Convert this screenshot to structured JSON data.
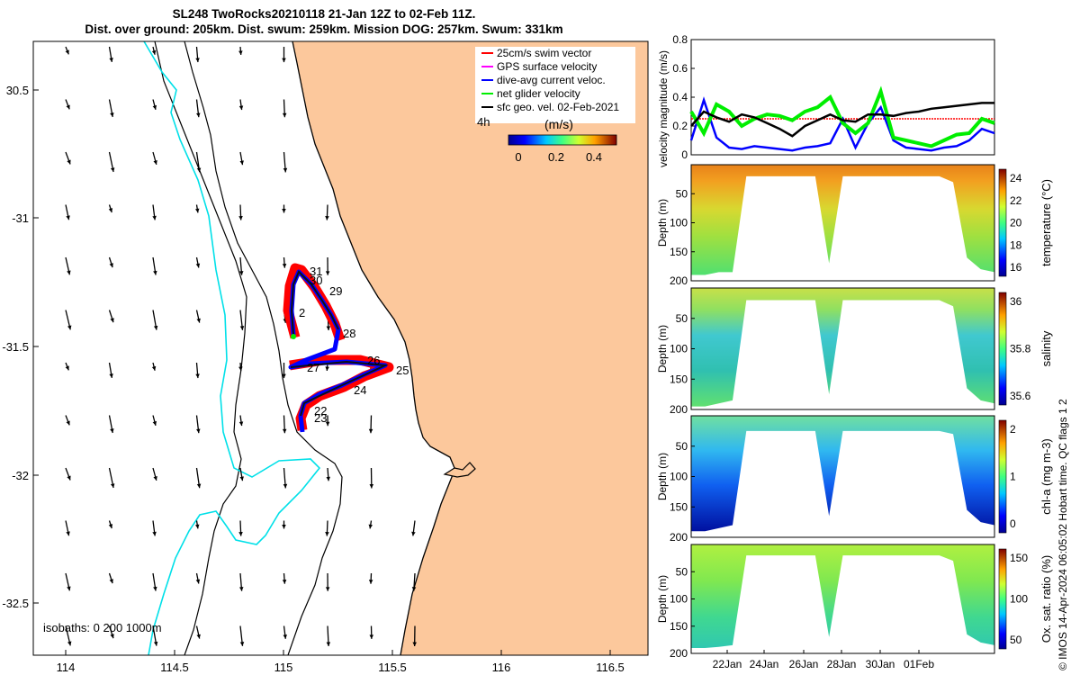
{
  "header": {
    "title_line1": "SL248 TwoRocks20210118 21-Jan 12Z to 02-Feb 11Z.",
    "title_line2": "Dist. over ground: 205km. Dist. swum: 259km. Mission DOG: 257km. Swum: 331km"
  },
  "colors": {
    "land": "#fcc89c",
    "coast_contour": "#00e0e8",
    "swim_vector": "#ff0000",
    "gps_velocity": "#ff00ff",
    "current": "#0000ff",
    "glider_velocity": "#00ee00",
    "sfc_geo": "#000000"
  },
  "map": {
    "lon_ticks": [
      "114",
      "114.5",
      "115",
      "115.5",
      "116",
      "116.5"
    ],
    "lat_ticks": [
      "30.5",
      "-31",
      "-31.5",
      "-32",
      "-32.5"
    ],
    "legend_items": [
      {
        "label": "25cm/s swim vector",
        "color": "#ff0000"
      },
      {
        "label": "GPS surface velocity",
        "color": "#ff00ff"
      },
      {
        "label": "dive-avg current veloc.",
        "color": "#0000ff"
      },
      {
        "label": "net glider velocity",
        "color": "#00ee00"
      },
      {
        "label": "sfc geo. vel. 02-Feb-2021",
        "color": "#000000"
      }
    ],
    "legend_time": "4h",
    "colorbar_label": "(m/s)",
    "colorbar_ticks": [
      "0",
      "0.2",
      "0.4"
    ],
    "isobaths_label": "isobaths: 0   200  1000m",
    "day_labels": [
      {
        "text": "31"
      },
      {
        "text": "30"
      },
      {
        "text": "29"
      },
      {
        "text": "2"
      },
      {
        "text": "28"
      },
      {
        "text": "26"
      },
      {
        "text": "25"
      },
      {
        "text": "27"
      },
      {
        "text": "24"
      },
      {
        "text": "22"
      },
      {
        "text": "23"
      }
    ]
  },
  "right_panels": {
    "credit": "© IMOS 14-Apr-2024 06:05:02 Hobart time. QC flags 1  2",
    "time_ticks": [
      "22Jan",
      "24Jan",
      "26Jan",
      "28Jan",
      "30Jan",
      "01Feb"
    ],
    "depth_ticks": [
      "50",
      "100",
      "150",
      "200"
    ],
    "velocity": {
      "ylabel": "velocity magnitude (m/s)",
      "yticks": [
        "0",
        "0.2",
        "0.4",
        "0.6",
        "0.8"
      ]
    },
    "sections": [
      {
        "ylabel": "Depth (m)",
        "cbar_label": "temperature (°C)",
        "cbar_ticks": [
          "24",
          "22",
          "20",
          "18",
          "16"
        ]
      },
      {
        "ylabel": "Depth (m)",
        "cbar_label": "salinity",
        "cbar_ticks": [
          "36",
          "35.8",
          "35.6"
        ]
      },
      {
        "ylabel": "Depth (m)",
        "cbar_label": "chl-a (mg m-3)",
        "cbar_ticks": [
          "2",
          "1",
          "0"
        ]
      },
      {
        "ylabel": "Depth (m)",
        "cbar_label": "Ox. sat. ratio (%)",
        "cbar_ticks": [
          "150",
          "100",
          "50"
        ]
      }
    ]
  },
  "chart_data": [
    {
      "type": "line",
      "title": "velocity magnitude (m/s)",
      "xlabel": "",
      "ylabel": "velocity magnitude (m/s)",
      "ylim": [
        0,
        0.8
      ],
      "x_start": "21-Jan 12Z",
      "x_end": "02-Feb 11Z",
      "series": [
        {
          "name": "25cm/s swim vector",
          "color": "#ff0000",
          "values": [
            0.25,
            0.25,
            0.25,
            0.25,
            0.25,
            0.25,
            0.25,
            0.25,
            0.25,
            0.25,
            0.25,
            0.25,
            0.25,
            0.25,
            0.25,
            0.25,
            0.25,
            0.25,
            0.25,
            0.25,
            0.25,
            0.25,
            0.25,
            0.25,
            0.25
          ]
        },
        {
          "name": "dive-avg current veloc.",
          "color": "#0000ff",
          "values": [
            0.1,
            0.38,
            0.12,
            0.05,
            0.04,
            0.06,
            0.05,
            0.04,
            0.03,
            0.05,
            0.06,
            0.08,
            0.25,
            0.05,
            0.22,
            0.33,
            0.1,
            0.05,
            0.04,
            0.03,
            0.05,
            0.06,
            0.1,
            0.18,
            0.15
          ]
        },
        {
          "name": "net glider velocity",
          "color": "#00ee00",
          "values": [
            0.3,
            0.15,
            0.35,
            0.3,
            0.2,
            0.25,
            0.28,
            0.27,
            0.24,
            0.3,
            0.33,
            0.4,
            0.22,
            0.15,
            0.22,
            0.44,
            0.12,
            0.1,
            0.08,
            0.06,
            0.1,
            0.14,
            0.15,
            0.25,
            0.22
          ]
        },
        {
          "name": "sfc geo. vel.",
          "color": "#000000",
          "values": [
            0.2,
            0.3,
            0.26,
            0.23,
            0.28,
            0.26,
            0.22,
            0.18,
            0.13,
            0.2,
            0.24,
            0.28,
            0.24,
            0.23,
            0.28,
            0.28,
            0.27,
            0.29,
            0.3,
            0.32,
            0.33,
            0.34,
            0.35,
            0.36,
            0.36
          ]
        }
      ]
    },
    {
      "type": "heatmap",
      "title": "temperature",
      "ylabel": "Depth (m)",
      "ylim": [
        200,
        0
      ],
      "cbar_label": "temperature (°C)",
      "clim": [
        15,
        25
      ],
      "profile_max_depth": [
        190,
        190,
        185,
        185,
        20,
        20,
        20,
        20,
        20,
        20,
        170,
        20,
        20,
        20,
        20,
        20,
        20,
        20,
        20,
        30,
        160,
        180,
        185
      ],
      "surface_value": 23.5,
      "deep_value": 18.5
    },
    {
      "type": "heatmap",
      "title": "salinity",
      "ylabel": "Depth (m)",
      "ylim": [
        200,
        0
      ],
      "cbar_label": "salinity",
      "clim": [
        35.5,
        36.1
      ],
      "profile_max_depth": [
        195,
        195,
        190,
        185,
        20,
        20,
        20,
        20,
        20,
        20,
        175,
        20,
        20,
        20,
        20,
        20,
        20,
        20,
        20,
        30,
        165,
        185,
        190
      ],
      "surface_value": 35.85,
      "deep_value": 35.65
    },
    {
      "type": "heatmap",
      "title": "chl-a",
      "ylabel": "Depth (m)",
      "ylim": [
        200,
        0
      ],
      "cbar_label": "chl-a (mg m-3)",
      "clim": [
        0,
        2
      ],
      "profile_max_depth": [
        190,
        190,
        185,
        180,
        25,
        25,
        25,
        25,
        25,
        25,
        165,
        25,
        25,
        25,
        25,
        25,
        25,
        25,
        25,
        30,
        155,
        175,
        180
      ],
      "surface_value": 0.9,
      "deep_value": 0.4
    },
    {
      "type": "heatmap",
      "title": "oxygen saturation",
      "ylabel": "Depth (m)",
      "ylim": [
        200,
        0
      ],
      "cbar_label": "Ox. sat. ratio (%)",
      "clim": [
        25,
        175
      ],
      "profile_max_depth": [
        190,
        190,
        188,
        185,
        20,
        20,
        20,
        20,
        20,
        20,
        170,
        20,
        20,
        20,
        20,
        20,
        20,
        20,
        20,
        30,
        165,
        180,
        185
      ],
      "surface_value": 108,
      "deep_value": 95
    }
  ]
}
